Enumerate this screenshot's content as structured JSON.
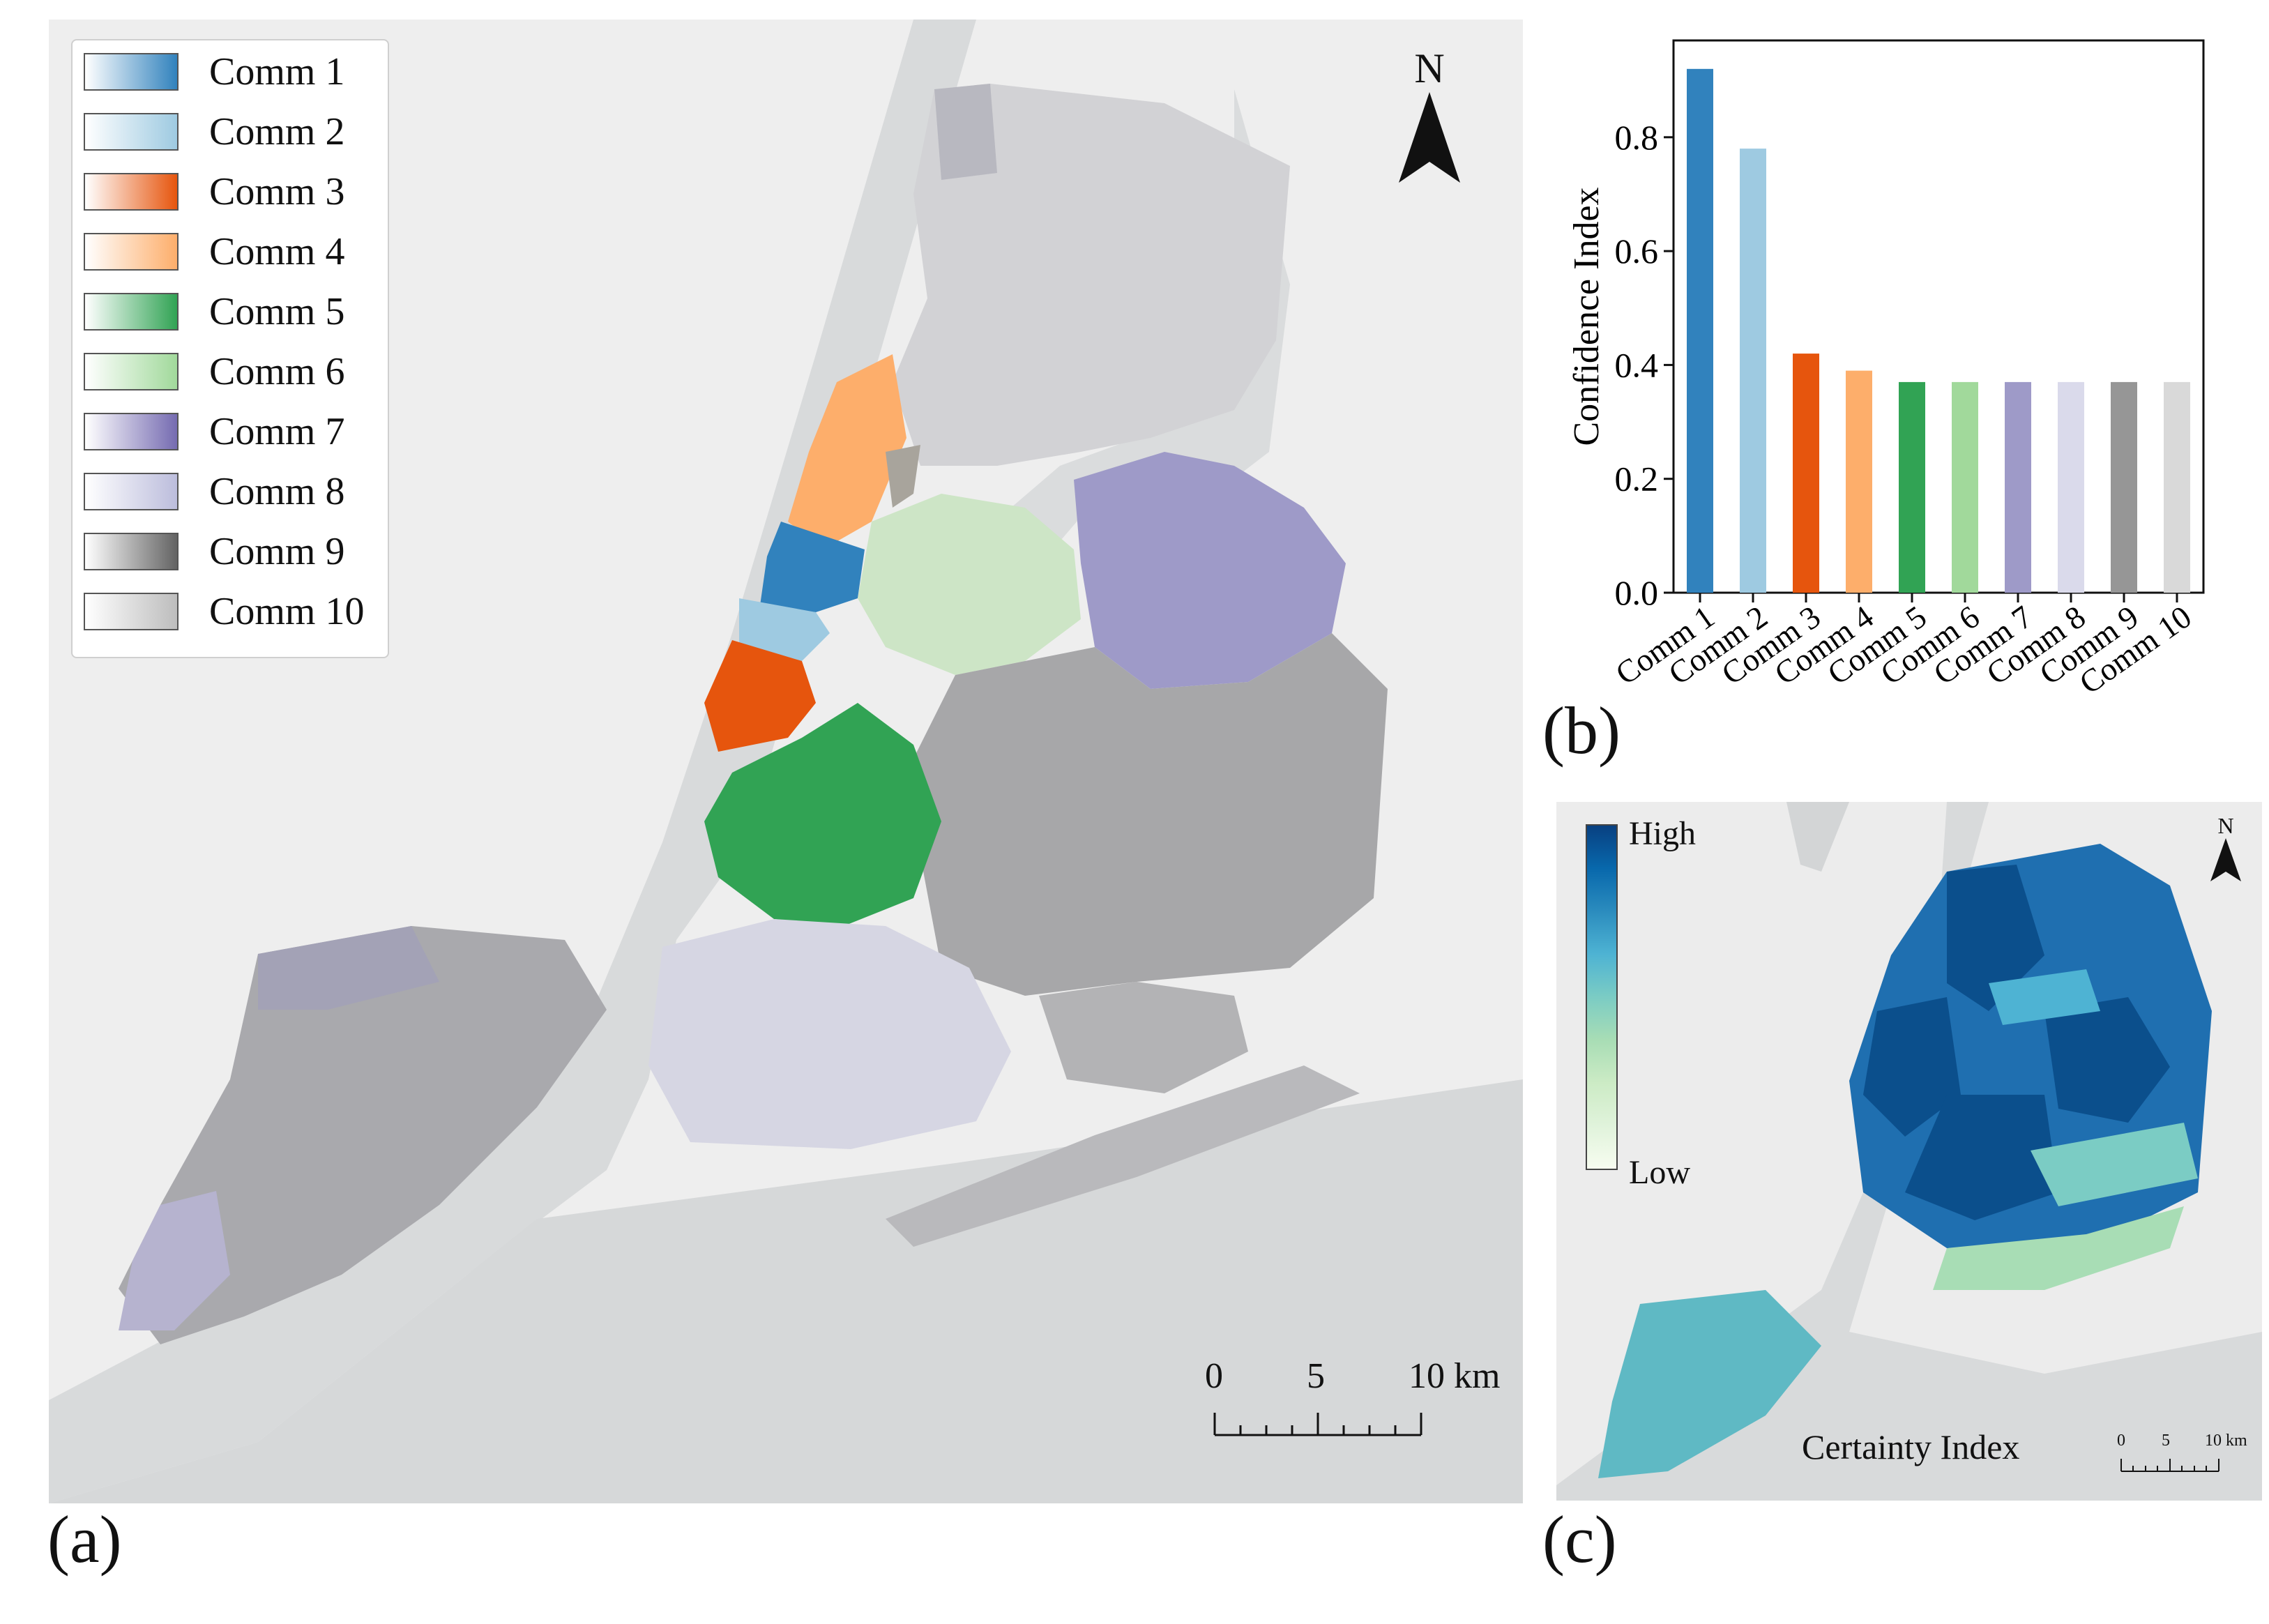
{
  "panel_a": {
    "label": "(a)",
    "north": "N",
    "legend": [
      {
        "name": "Comm 1",
        "color": "#3182bd"
      },
      {
        "name": "Comm 2",
        "color": "#9ecae1"
      },
      {
        "name": "Comm 3",
        "color": "#e6550d"
      },
      {
        "name": "Comm 4",
        "color": "#fdae6b"
      },
      {
        "name": "Comm 5",
        "color": "#31a354"
      },
      {
        "name": "Comm 6",
        "color": "#a1d99b"
      },
      {
        "name": "Comm 7",
        "color": "#756bb1"
      },
      {
        "name": "Comm 8",
        "color": "#bcbddc"
      },
      {
        "name": "Comm 9",
        "color": "#636363"
      },
      {
        "name": "Comm 10",
        "color": "#bdbdbd"
      }
    ],
    "scale": {
      "ticks": [
        "0",
        "5",
        "10 km"
      ]
    }
  },
  "panel_b": {
    "label": "(b)"
  },
  "panel_c": {
    "label": "(c)",
    "north": "N",
    "legend_high": "High",
    "legend_low": "Low",
    "title": "Certainty Index",
    "scale": {
      "ticks": [
        "0",
        "5",
        "10 km"
      ]
    },
    "ramp": [
      "#084081",
      "#0868ac",
      "#2b8cbe",
      "#4eb3d3",
      "#7bccc4",
      "#a8ddb5",
      "#ccebc5",
      "#e0f3db",
      "#f7fcf0"
    ]
  },
  "chart_data": {
    "type": "bar",
    "title": "",
    "xlabel": "",
    "ylabel": "Confidence Index",
    "categories": [
      "Comm 1",
      "Comm 2",
      "Comm 3",
      "Comm 4",
      "Comm 5",
      "Comm 6",
      "Comm 7",
      "Comm 8",
      "Comm 9",
      "Comm 10"
    ],
    "values": [
      0.92,
      0.78,
      0.42,
      0.39,
      0.37,
      0.37,
      0.37,
      0.37,
      0.37,
      0.37
    ],
    "colors": [
      "#3182bd",
      "#9ecae1",
      "#e6550d",
      "#fdae6b",
      "#31a354",
      "#a1d99b",
      "#9e9ac8",
      "#dadaeb",
      "#969696",
      "#d9d9d9"
    ],
    "yticks": [
      "0.0",
      "0.2",
      "0.4",
      "0.6",
      "0.8"
    ],
    "ylim": [
      0,
      0.97
    ],
    "grid": false
  }
}
